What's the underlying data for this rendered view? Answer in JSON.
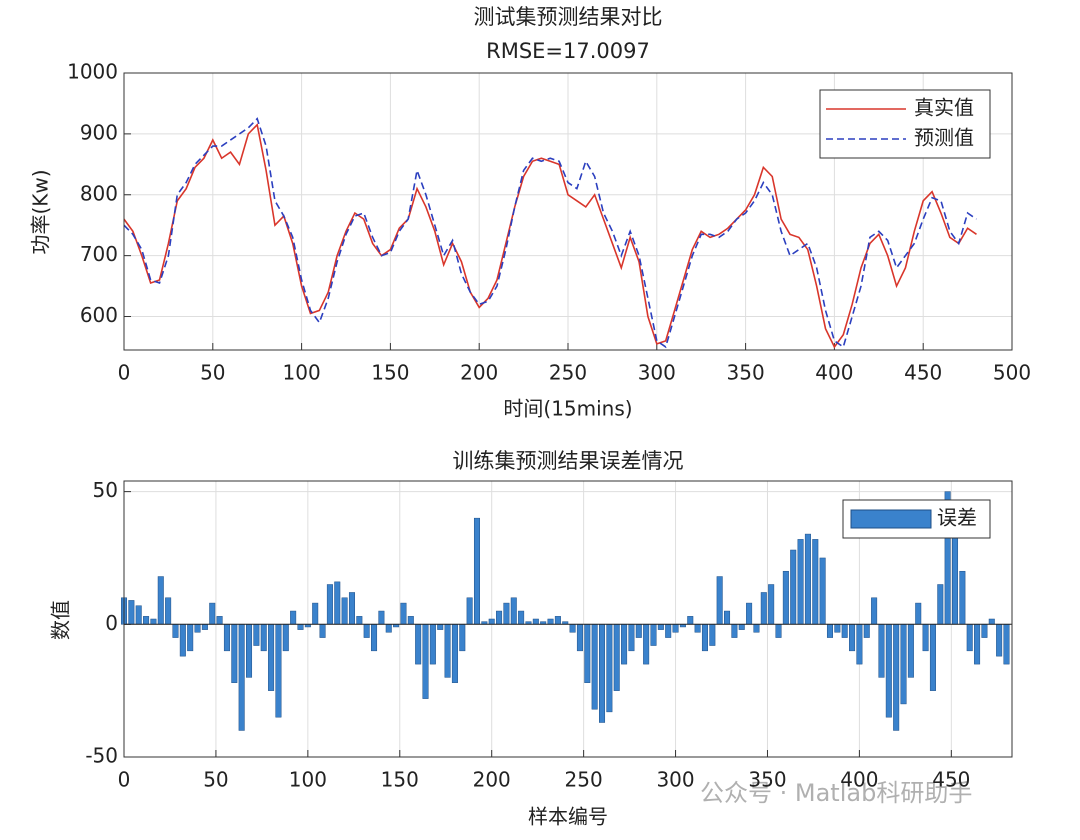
{
  "chart_data": [
    {
      "type": "line",
      "title": "测试集预测结果对比",
      "subtitle": "RMSE=17.0097",
      "xlabel": "时间(15mins)",
      "ylabel": "功率(Kw)",
      "x": [
        0,
        5,
        10,
        15,
        20,
        25,
        30,
        35,
        40,
        45,
        50,
        55,
        60,
        65,
        70,
        75,
        80,
        85,
        90,
        95,
        100,
        105,
        110,
        115,
        120,
        125,
        130,
        135,
        140,
        145,
        150,
        155,
        160,
        165,
        170,
        175,
        180,
        185,
        190,
        195,
        200,
        205,
        210,
        215,
        220,
        225,
        230,
        235,
        240,
        245,
        250,
        255,
        260,
        265,
        270,
        275,
        280,
        285,
        290,
        295,
        300,
        305,
        310,
        315,
        320,
        325,
        330,
        335,
        340,
        345,
        350,
        355,
        360,
        365,
        370,
        375,
        380,
        385,
        390,
        395,
        400,
        405,
        410,
        415,
        420,
        425,
        430,
        435,
        440,
        445,
        450,
        455,
        460,
        465,
        470,
        475,
        480
      ],
      "series": [
        {
          "name": "真实值",
          "color": "#d9362b",
          "line_style": "solid",
          "values": [
            760,
            740,
            700,
            655,
            660,
            720,
            790,
            810,
            845,
            860,
            890,
            860,
            870,
            850,
            900,
            915,
            840,
            750,
            765,
            720,
            650,
            605,
            610,
            640,
            700,
            740,
            770,
            760,
            720,
            700,
            710,
            745,
            760,
            810,
            780,
            740,
            685,
            720,
            690,
            640,
            615,
            630,
            660,
            720,
            780,
            830,
            855,
            860,
            855,
            850,
            800,
            790,
            780,
            800,
            760,
            720,
            680,
            730,
            690,
            600,
            555,
            560,
            610,
            660,
            710,
            740,
            730,
            735,
            745,
            760,
            775,
            800,
            845,
            830,
            760,
            735,
            730,
            710,
            650,
            580,
            550,
            570,
            620,
            680,
            720,
            735,
            700,
            650,
            680,
            740,
            790,
            805,
            770,
            730,
            720,
            745,
            735
          ]
        },
        {
          "name": "预测值",
          "color": "#2b3fbf",
          "line_style": "dashed",
          "values": [
            750,
            735,
            710,
            660,
            655,
            700,
            800,
            820,
            850,
            865,
            880,
            880,
            890,
            900,
            910,
            925,
            880,
            790,
            765,
            730,
            660,
            610,
            590,
            630,
            690,
            735,
            765,
            770,
            730,
            700,
            705,
            740,
            760,
            840,
            800,
            750,
            700,
            725,
            670,
            640,
            620,
            625,
            650,
            710,
            780,
            840,
            860,
            855,
            860,
            855,
            820,
            810,
            855,
            830,
            770,
            740,
            700,
            740,
            700,
            630,
            560,
            550,
            600,
            650,
            700,
            735,
            735,
            730,
            740,
            760,
            770,
            790,
            820,
            800,
            740,
            700,
            710,
            720,
            680,
            610,
            560,
            550,
            600,
            650,
            730,
            740,
            725,
            680,
            700,
            720,
            760,
            795,
            790,
            740,
            720,
            770,
            760
          ]
        }
      ],
      "xlim": [
        0,
        500
      ],
      "xticks": [
        0,
        50,
        100,
        150,
        200,
        250,
        300,
        350,
        400,
        450,
        500
      ],
      "ylim": [
        545,
        1000
      ],
      "yticks": [
        600,
        700,
        800,
        900,
        1000
      ],
      "grid": true,
      "legend": "upper right"
    },
    {
      "type": "bar",
      "title": "训练集预测结果误差情况",
      "xlabel": "样本编号",
      "ylabel": "数值",
      "x": [
        0,
        4,
        8,
        12,
        16,
        20,
        24,
        28,
        32,
        36,
        40,
        44,
        48,
        52,
        56,
        60,
        64,
        68,
        72,
        76,
        80,
        84,
        88,
        92,
        96,
        100,
        104,
        108,
        112,
        116,
        120,
        124,
        128,
        132,
        136,
        140,
        144,
        148,
        152,
        156,
        160,
        164,
        168,
        172,
        176,
        180,
        184,
        188,
        192,
        196,
        200,
        204,
        208,
        212,
        216,
        220,
        224,
        228,
        232,
        236,
        240,
        244,
        248,
        252,
        256,
        260,
        264,
        268,
        272,
        276,
        280,
        284,
        288,
        292,
        296,
        300,
        304,
        308,
        312,
        316,
        320,
        324,
        328,
        332,
        336,
        340,
        344,
        348,
        352,
        356,
        360,
        364,
        368,
        372,
        376,
        380,
        384,
        388,
        392,
        396,
        400,
        404,
        408,
        412,
        416,
        420,
        424,
        428,
        432,
        436,
        440,
        444,
        448,
        452,
        456,
        460,
        464,
        468,
        472,
        476,
        480
      ],
      "series": [
        {
          "name": "误差",
          "color": "#3a82cc",
          "values": [
            10,
            9,
            7,
            3,
            2,
            18,
            10,
            -5,
            -12,
            -10,
            -3,
            -2,
            8,
            3,
            -10,
            -22,
            -40,
            -20,
            -8,
            -10,
            -25,
            -35,
            -10,
            5,
            -2,
            -1,
            8,
            -5,
            15,
            16,
            10,
            12,
            3,
            -5,
            -10,
            5,
            -3,
            -1,
            8,
            3,
            -15,
            -28,
            -15,
            -2,
            -20,
            -22,
            -10,
            10,
            40,
            1,
            2,
            5,
            8,
            10,
            5,
            1,
            2,
            1,
            2,
            3,
            1,
            -3,
            -10,
            -22,
            -32,
            -37,
            -33,
            -25,
            -15,
            -10,
            -5,
            -15,
            -8,
            -2,
            -5,
            -3,
            -1,
            3,
            -3,
            -10,
            -8,
            18,
            5,
            -5,
            -2,
            8,
            -3,
            12,
            15,
            -5,
            20,
            28,
            32,
            34,
            32,
            25,
            -5,
            -3,
            -5,
            -10,
            -15,
            -5,
            10,
            -20,
            -35,
            -40,
            -30,
            -20,
            8,
            -10,
            -25,
            15,
            50,
            40,
            20,
            -10,
            -15,
            -5,
            2,
            -12,
            -15
          ]
        }
      ],
      "xlim": [
        0,
        483
      ],
      "xticks": [
        0,
        50,
        100,
        150,
        200,
        250,
        300,
        350,
        400,
        450
      ],
      "ylim": [
        -50,
        54
      ],
      "yticks": [
        -50,
        0,
        50
      ],
      "grid": true,
      "legend": "upper right"
    }
  ],
  "watermark": "公众号 · Matlab科研助手"
}
